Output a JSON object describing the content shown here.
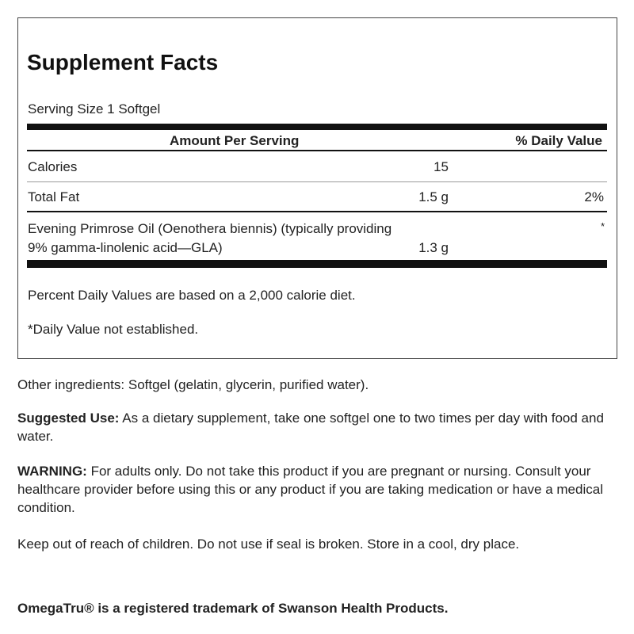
{
  "facts": {
    "title": "Supplement Facts",
    "serving": "Serving Size 1 Softgel",
    "header": {
      "amount": "Amount Per Serving",
      "dv": "% Daily Value"
    },
    "rows": [
      {
        "name": "Calories",
        "amount": "15"
      },
      {
        "name": "Total Fat",
        "amount": "1.5 g",
        "dv": "2%"
      },
      {
        "name": [
          "Evening Primrose Oil (Oenothera biennis) (typically providing",
          "9% gamma-linolenic acid—GLA)"
        ],
        "amount": "1.3 g",
        "dv": "*"
      }
    ],
    "notes": [
      "Percent Daily Values are based on a 2,000 calorie diet.",
      "*Daily Value not established."
    ]
  },
  "other": "Other ingredients: Softgel (gelatin, glycerin, purified water).",
  "suggested": {
    "label": "Suggested Use:",
    "text": "As a dietary supplement, take one softgel one to two times per day with food and water."
  },
  "warning": {
    "label": "WARNING:",
    "text": "For adults only. Do not take this product if you are pregnant or nursing. Consult your healthcare provider before using this or any product if you are taking medication or have a medical condition."
  },
  "keep": "Keep out of reach of children. Do not use if seal is broken. Store in a cool, dry place.",
  "trademark": "OmegaTru® is a registered trademark of Swanson Health Products."
}
